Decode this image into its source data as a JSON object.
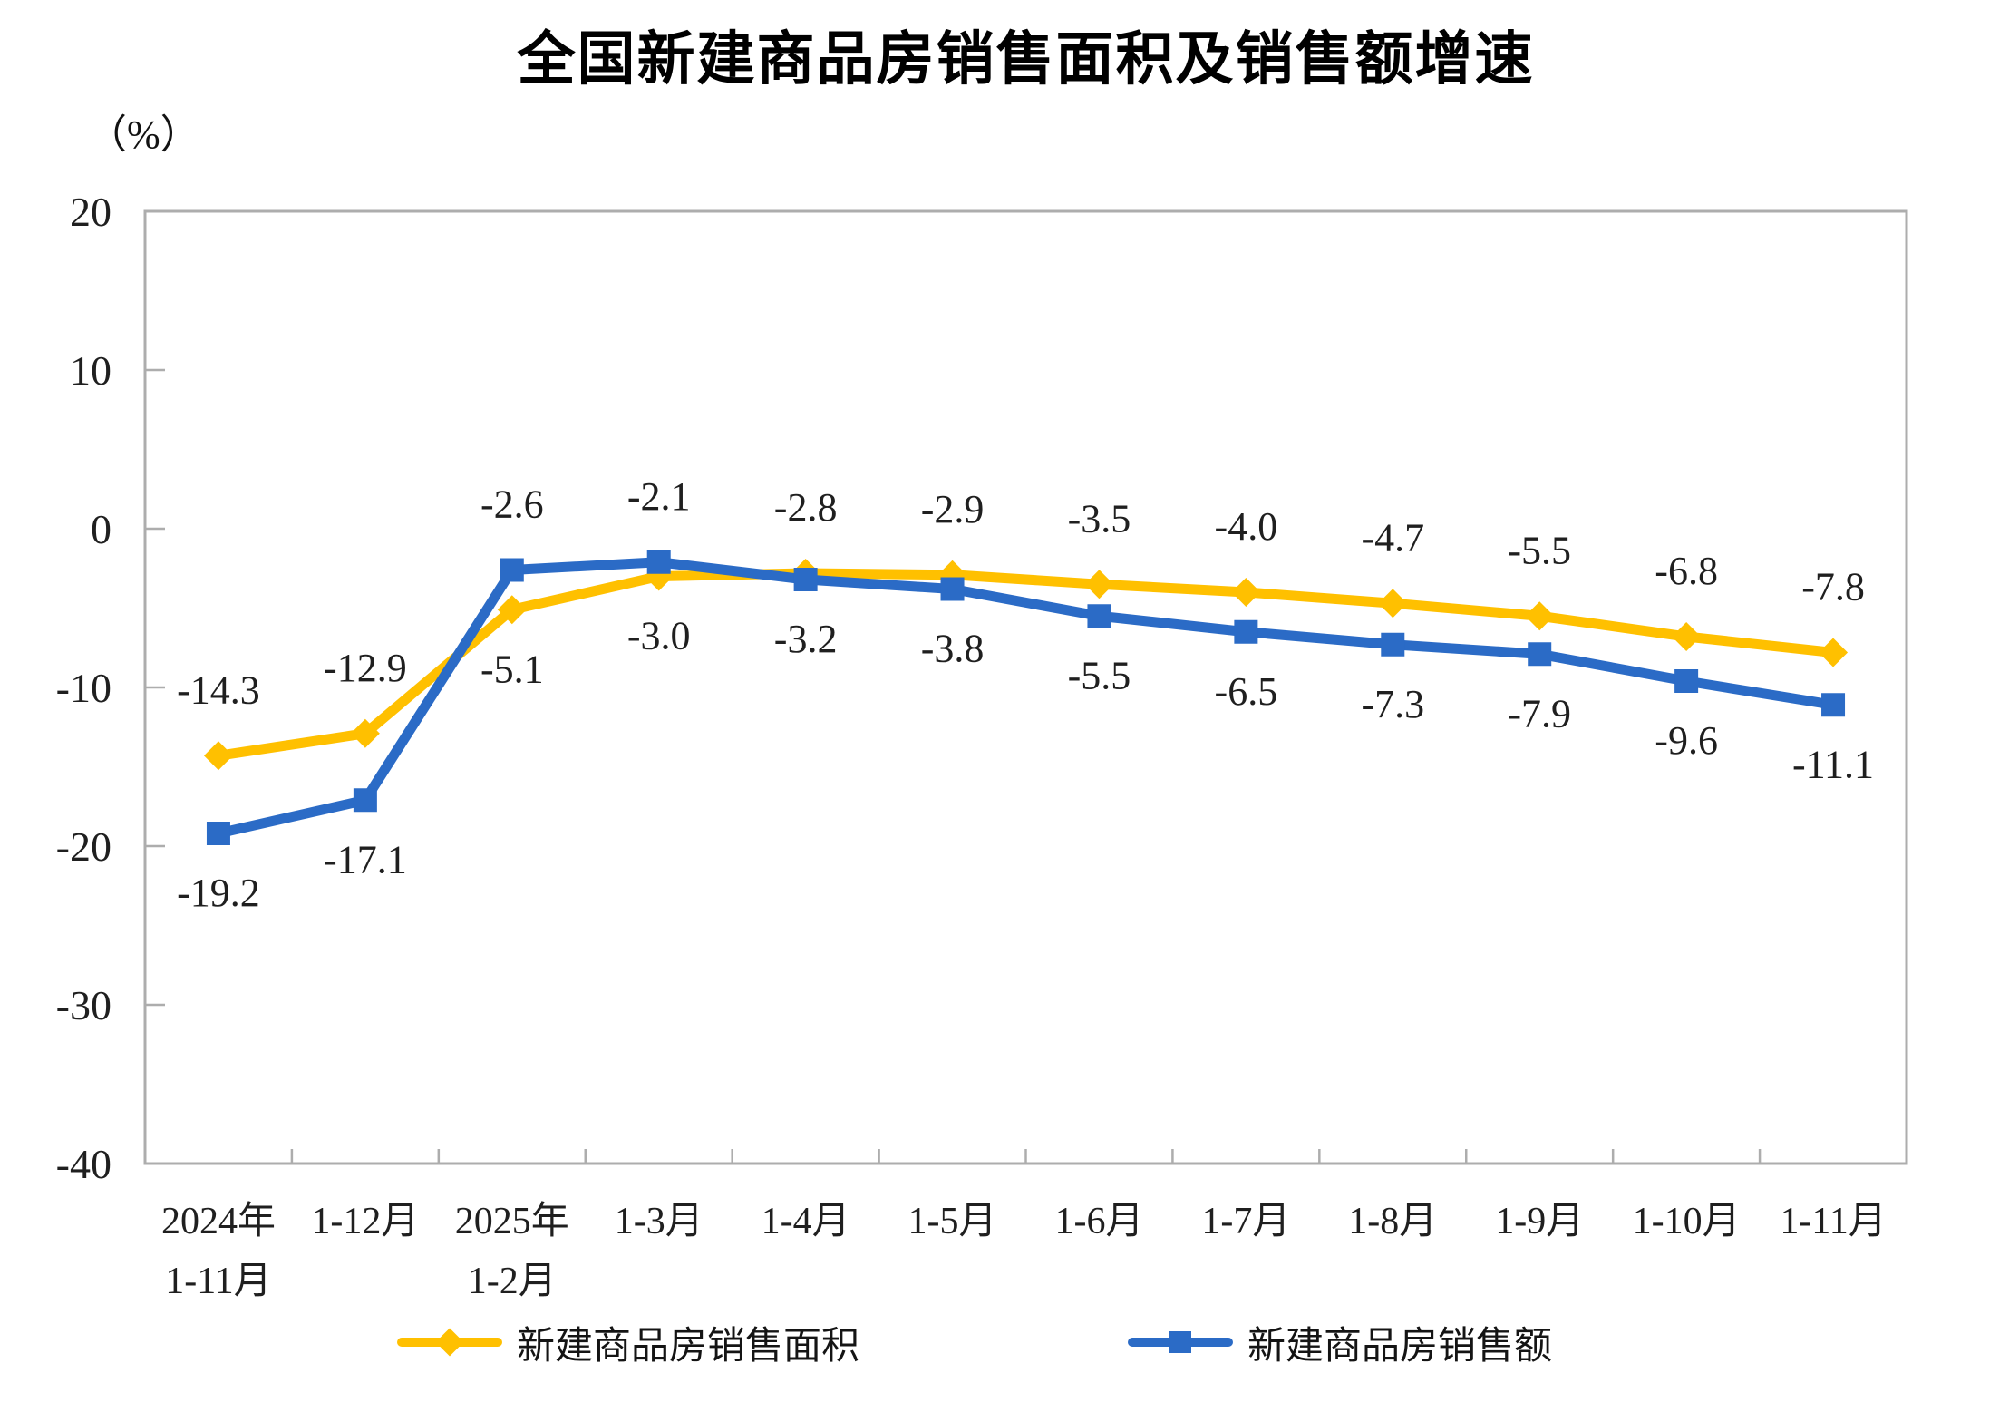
{
  "chart_data": {
    "type": "line",
    "title": "全国新建商品房销售面积及销售额增速",
    "unit": "（%）",
    "categories": [
      "2024年\n1-11月",
      "1-12月",
      "2025年\n1-2月",
      "1-3月",
      "1-4月",
      "1-5月",
      "1-6月",
      "1-7月",
      "1-8月",
      "1-9月",
      "1-10月",
      "1-11月"
    ],
    "series": [
      {
        "name": "新建商品房销售面积",
        "color": "#FFC000",
        "marker": "diamond",
        "values": [
          -14.3,
          -12.9,
          -5.1,
          -3.0,
          -2.8,
          -2.9,
          -3.5,
          -4.0,
          -4.7,
          -5.5,
          -6.8,
          -7.8
        ]
      },
      {
        "name": "新建商品房销售额",
        "color": "#2B6BC6",
        "marker": "square",
        "values": [
          -19.2,
          -17.1,
          -2.6,
          -2.1,
          -3.2,
          -3.8,
          -5.5,
          -6.5,
          -7.3,
          -7.9,
          -9.6,
          -11.1
        ]
      }
    ],
    "ylim": [
      -40,
      20
    ],
    "yticks": [
      20,
      10,
      0,
      -10,
      -20,
      -30,
      -40
    ],
    "grid": false,
    "legend_position": "bottom",
    "axis_color": "#ADADAD",
    "label_color": "#1f1f1f"
  }
}
